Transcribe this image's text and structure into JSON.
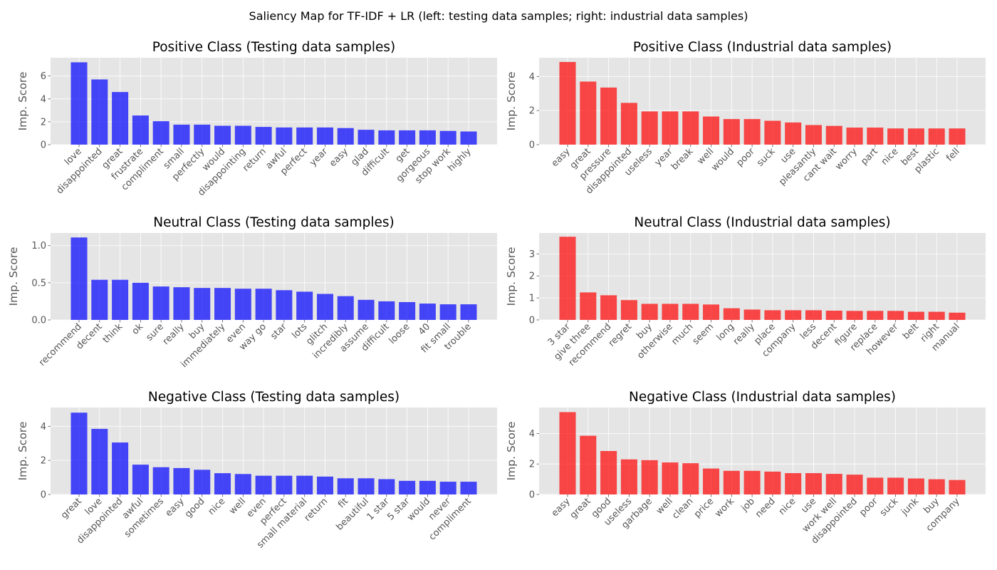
{
  "figure": {
    "title": "Saliency Map for TF-IDF + LR (left: testing data samples; right: industrial data samples)",
    "colors": {
      "testing": "#0000ff",
      "industrial": "#ff0000",
      "panel_bg": "#e5e5e5",
      "grid": "#ffffff"
    }
  },
  "chart_data": [
    {
      "type": "bar",
      "title": "Positive Class (Testing data samples)",
      "ylabel": "Imp. Score",
      "ylim": [
        0,
        7.6
      ],
      "yticks": [
        0,
        2,
        4,
        6
      ],
      "color": "testing",
      "categories": [
        "love",
        "disappointed",
        "great",
        "frustrate",
        "compliment",
        "small",
        "perfectly",
        "would",
        "disappointing",
        "return",
        "awful",
        "perfect",
        "year",
        "easy",
        "glad",
        "difficult",
        "get",
        "gorgeous",
        "stop work",
        "highly"
      ],
      "values": [
        7.2,
        5.7,
        4.6,
        2.55,
        2.05,
        1.75,
        1.75,
        1.65,
        1.65,
        1.55,
        1.5,
        1.5,
        1.5,
        1.45,
        1.3,
        1.25,
        1.25,
        1.25,
        1.2,
        1.15
      ]
    },
    {
      "type": "bar",
      "title": "Positive Class (Industrial data samples)",
      "ylabel": "Imp. Score",
      "ylim": [
        0,
        5.1
      ],
      "yticks": [
        0,
        2,
        4
      ],
      "color": "industrial",
      "categories": [
        "easy",
        "great",
        "pressure",
        "disappointed",
        "useless",
        "year",
        "break",
        "well",
        "would",
        "poor",
        "suck",
        "use",
        "pleasantly",
        "cant wait",
        "worry",
        "part",
        "nice",
        "best",
        "plastic",
        "fell"
      ],
      "values": [
        4.85,
        3.7,
        3.35,
        2.45,
        1.95,
        1.95,
        1.95,
        1.65,
        1.5,
        1.5,
        1.4,
        1.3,
        1.15,
        1.1,
        1.0,
        1.0,
        0.95,
        0.95,
        0.95,
        0.95
      ]
    },
    {
      "type": "bar",
      "title": "Neutral Class (Testing data samples)",
      "ylabel": "Imp. Score",
      "ylim": [
        0,
        1.17
      ],
      "yticks": [
        0.0,
        0.5,
        1.0
      ],
      "ytick_labels": [
        "0.0",
        "0.5",
        "1.0"
      ],
      "color": "testing",
      "categories": [
        "recommend",
        "decent",
        "think",
        "ok",
        "sure",
        "really",
        "buy",
        "immediately",
        "even",
        "way go",
        "star",
        "lots",
        "glitch",
        "incredibly",
        "assume",
        "difficult",
        "loose",
        "40",
        "fit small",
        "trouble"
      ],
      "values": [
        1.11,
        0.54,
        0.54,
        0.5,
        0.45,
        0.44,
        0.43,
        0.43,
        0.42,
        0.42,
        0.4,
        0.38,
        0.35,
        0.32,
        0.27,
        0.25,
        0.24,
        0.22,
        0.21,
        0.21
      ]
    },
    {
      "type": "bar",
      "title": "Neutral Class (Industrial data samples)",
      "ylabel": "Imp. Score",
      "ylim": [
        0,
        3.95
      ],
      "yticks": [
        0,
        1,
        2,
        3
      ],
      "color": "industrial",
      "categories": [
        "3 star",
        "give three",
        "recommend",
        "regret",
        "buy",
        "otherwise",
        "much",
        "seem",
        "long",
        "really",
        "place",
        "company",
        "less",
        "decent",
        "figure",
        "replace",
        "however",
        "belt",
        "right",
        "manual"
      ],
      "values": [
        3.78,
        1.25,
        1.12,
        0.9,
        0.73,
        0.73,
        0.73,
        0.7,
        0.53,
        0.47,
        0.44,
        0.44,
        0.44,
        0.42,
        0.41,
        0.41,
        0.41,
        0.37,
        0.37,
        0.33
      ]
    },
    {
      "type": "bar",
      "title": "Negative Class (Testing data samples)",
      "ylabel": "Imp. Score",
      "ylim": [
        0,
        5.1
      ],
      "yticks": [
        0,
        2,
        4
      ],
      "color": "testing",
      "categories": [
        "great",
        "love",
        "disappointed",
        "awful",
        "sometimes",
        "easy",
        "good",
        "nice",
        "well",
        "even",
        "perfect",
        "small material",
        "return",
        "fit",
        "beautiful",
        "1 star",
        "5 star",
        "would",
        "never",
        "compliment"
      ],
      "values": [
        4.8,
        3.85,
        3.05,
        1.75,
        1.6,
        1.55,
        1.45,
        1.25,
        1.2,
        1.1,
        1.1,
        1.1,
        1.05,
        0.95,
        0.95,
        0.9,
        0.8,
        0.8,
        0.75,
        0.75
      ]
    },
    {
      "type": "bar",
      "title": "Negative Class (Industrial data samples)",
      "ylabel": "Imp. Score",
      "ylim": [
        0,
        5.7
      ],
      "yticks": [
        0,
        2,
        4
      ],
      "color": "industrial",
      "categories": [
        "easy",
        "great",
        "good",
        "useless",
        "garbage",
        "well",
        "clean",
        "price",
        "work",
        "job",
        "need",
        "nice",
        "use",
        "work well",
        "disappointed",
        "poor",
        "suck",
        "junk",
        "buy",
        "company"
      ],
      "values": [
        5.4,
        3.85,
        2.85,
        2.3,
        2.25,
        2.1,
        2.05,
        1.7,
        1.55,
        1.55,
        1.5,
        1.4,
        1.4,
        1.35,
        1.3,
        1.1,
        1.1,
        1.05,
        1.0,
        0.95
      ]
    }
  ]
}
